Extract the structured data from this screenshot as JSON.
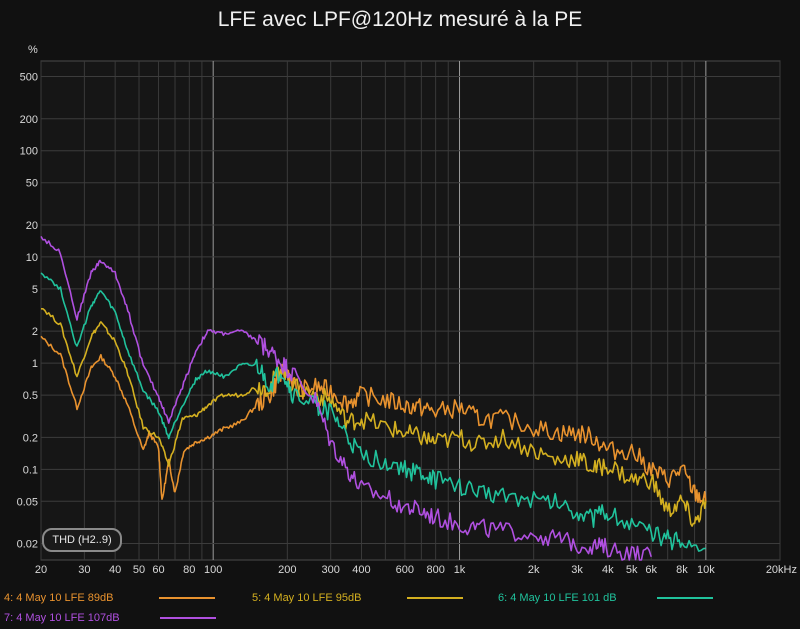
{
  "chart_data": {
    "type": "line",
    "title": "LFE avec LPF@120Hz mesuré à la PE",
    "yunit": "%",
    "xunit": "",
    "x_scale": "log",
    "y_scale": "log",
    "xlim": [
      20,
      20000
    ],
    "ylim": [
      0.014,
      700
    ],
    "grid": true,
    "x_ticks": [
      {
        "v": 20,
        "label": "20"
      },
      {
        "v": 30,
        "label": "30"
      },
      {
        "v": 40,
        "label": "40"
      },
      {
        "v": 50,
        "label": "50"
      },
      {
        "v": 60,
        "label": "60"
      },
      {
        "v": 80,
        "label": "80"
      },
      {
        "v": 100,
        "label": "100"
      },
      {
        "v": 200,
        "label": "200"
      },
      {
        "v": 300,
        "label": "300"
      },
      {
        "v": 400,
        "label": "400"
      },
      {
        "v": 600,
        "label": "600"
      },
      {
        "v": 800,
        "label": "800"
      },
      {
        "v": 1000,
        "label": "1k"
      },
      {
        "v": 2000,
        "label": "2k"
      },
      {
        "v": 3000,
        "label": "3k"
      },
      {
        "v": 4000,
        "label": "4k"
      },
      {
        "v": 5000,
        "label": "5k"
      },
      {
        "v": 6000,
        "label": "6k"
      },
      {
        "v": 8000,
        "label": "8k"
      },
      {
        "v": 10000,
        "label": "10k"
      },
      {
        "v": 20000,
        "label": "20kHz"
      }
    ],
    "y_ticks": [
      {
        "v": 500,
        "label": "500"
      },
      {
        "v": 200,
        "label": "200"
      },
      {
        "v": 100,
        "label": "100"
      },
      {
        "v": 50,
        "label": "50"
      },
      {
        "v": 20,
        "label": "20"
      },
      {
        "v": 10,
        "label": "10"
      },
      {
        "v": 5,
        "label": "5"
      },
      {
        "v": 2,
        "label": "2"
      },
      {
        "v": 1,
        "label": "1"
      },
      {
        "v": 0.5,
        "label": "0.5"
      },
      {
        "v": 0.2,
        "label": "0.2"
      },
      {
        "v": 0.1,
        "label": "0.1"
      },
      {
        "v": 0.05,
        "label": "0.05"
      },
      {
        "v": 0.02,
        "label": "0.02"
      }
    ],
    "annotation": "THD (H2..9)",
    "series": [
      {
        "name": "4: 4 May 10 LFE 89dB",
        "color": "#e8922e",
        "points": [
          [
            20,
            1.75
          ],
          [
            24,
            1.2
          ],
          [
            28,
            0.38
          ],
          [
            32,
            0.9
          ],
          [
            35,
            1.15
          ],
          [
            40,
            0.75
          ],
          [
            45,
            0.4
          ],
          [
            52,
            0.15
          ],
          [
            55,
            0.22
          ],
          [
            60,
            0.16
          ],
          [
            62,
            0.05
          ],
          [
            66,
            0.12
          ],
          [
            70,
            0.06
          ],
          [
            76,
            0.15
          ],
          [
            85,
            0.18
          ],
          [
            95,
            0.2
          ],
          [
            110,
            0.24
          ],
          [
            130,
            0.28
          ],
          [
            150,
            0.4
          ],
          [
            170,
            0.5
          ],
          [
            185,
            0.75
          ],
          [
            200,
            0.85
          ],
          [
            220,
            0.55
          ],
          [
            260,
            0.6
          ],
          [
            300,
            0.55
          ],
          [
            350,
            0.42
          ],
          [
            400,
            0.5
          ],
          [
            500,
            0.45
          ],
          [
            600,
            0.4
          ],
          [
            700,
            0.38
          ],
          [
            800,
            0.35
          ],
          [
            1000,
            0.38
          ],
          [
            1200,
            0.3
          ],
          [
            1500,
            0.3
          ],
          [
            2000,
            0.25
          ],
          [
            2500,
            0.22
          ],
          [
            3000,
            0.22
          ],
          [
            3500,
            0.2
          ],
          [
            4000,
            0.15
          ],
          [
            5000,
            0.15
          ],
          [
            6000,
            0.1
          ],
          [
            7000,
            0.08
          ],
          [
            8000,
            0.1
          ],
          [
            9000,
            0.06
          ],
          [
            10000,
            0.05
          ]
        ]
      },
      {
        "name": "5: 4 May 10 LFE 95dB",
        "color": "#d4b020",
        "points": [
          [
            20,
            3.4
          ],
          [
            24,
            2.3
          ],
          [
            28,
            0.75
          ],
          [
            32,
            1.8
          ],
          [
            35,
            2.4
          ],
          [
            40,
            1.6
          ],
          [
            45,
            0.8
          ],
          [
            52,
            0.25
          ],
          [
            60,
            0.2
          ],
          [
            66,
            0.11
          ],
          [
            75,
            0.3
          ],
          [
            85,
            0.32
          ],
          [
            95,
            0.4
          ],
          [
            110,
            0.5
          ],
          [
            130,
            0.5
          ],
          [
            150,
            0.6
          ],
          [
            170,
            0.6
          ],
          [
            190,
            0.95
          ],
          [
            210,
            0.6
          ],
          [
            260,
            0.5
          ],
          [
            300,
            0.45
          ],
          [
            350,
            0.28
          ],
          [
            400,
            0.3
          ],
          [
            500,
            0.25
          ],
          [
            600,
            0.22
          ],
          [
            700,
            0.2
          ],
          [
            800,
            0.18
          ],
          [
            1000,
            0.2
          ],
          [
            1200,
            0.17
          ],
          [
            1500,
            0.2
          ],
          [
            2000,
            0.15
          ],
          [
            2500,
            0.12
          ],
          [
            3000,
            0.13
          ],
          [
            3500,
            0.1
          ],
          [
            4000,
            0.11
          ],
          [
            5000,
            0.08
          ],
          [
            6000,
            0.08
          ],
          [
            7000,
            0.04
          ],
          [
            8000,
            0.05
          ],
          [
            9000,
            0.03
          ],
          [
            10000,
            0.05
          ]
        ]
      },
      {
        "name": "6: 4 May 10 LFE 101 dB",
        "color": "#20c29c",
        "points": [
          [
            20,
            7.2
          ],
          [
            24,
            5.0
          ],
          [
            28,
            1.4
          ],
          [
            32,
            3.5
          ],
          [
            35,
            4.8
          ],
          [
            40,
            3.0
          ],
          [
            45,
            1.3
          ],
          [
            52,
            0.55
          ],
          [
            60,
            0.35
          ],
          [
            66,
            0.2
          ],
          [
            75,
            0.4
          ],
          [
            85,
            0.7
          ],
          [
            95,
            0.85
          ],
          [
            110,
            0.75
          ],
          [
            130,
            0.95
          ],
          [
            150,
            0.95
          ],
          [
            170,
            0.6
          ],
          [
            190,
            0.85
          ],
          [
            210,
            0.5
          ],
          [
            260,
            0.4
          ],
          [
            300,
            0.35
          ],
          [
            350,
            0.2
          ],
          [
            400,
            0.13
          ],
          [
            500,
            0.12
          ],
          [
            600,
            0.1
          ],
          [
            700,
            0.09
          ],
          [
            800,
            0.08
          ],
          [
            1000,
            0.07
          ],
          [
            1200,
            0.06
          ],
          [
            1500,
            0.06
          ],
          [
            2000,
            0.05
          ],
          [
            2500,
            0.05
          ],
          [
            3000,
            0.04
          ],
          [
            3500,
            0.035
          ],
          [
            4000,
            0.04
          ],
          [
            5000,
            0.03
          ],
          [
            6000,
            0.025
          ],
          [
            7000,
            0.022
          ],
          [
            8000,
            0.02
          ],
          [
            10000,
            0.018
          ]
        ]
      },
      {
        "name": "7: 4 May 10 LFE 107dB",
        "color": "#b050e0",
        "points": [
          [
            20,
            15.5
          ],
          [
            24,
            11
          ],
          [
            28,
            2.6
          ],
          [
            32,
            7.2
          ],
          [
            35,
            9.2
          ],
          [
            40,
            7.0
          ],
          [
            45,
            3.2
          ],
          [
            52,
            0.95
          ],
          [
            60,
            0.48
          ],
          [
            66,
            0.28
          ],
          [
            75,
            0.6
          ],
          [
            85,
            1.3
          ],
          [
            95,
            2.0
          ],
          [
            110,
            1.9
          ],
          [
            130,
            2.0
          ],
          [
            150,
            1.65
          ],
          [
            170,
            1.3
          ],
          [
            190,
            1.0
          ],
          [
            210,
            0.8
          ],
          [
            260,
            0.45
          ],
          [
            300,
            0.18
          ],
          [
            350,
            0.1
          ],
          [
            400,
            0.065
          ],
          [
            500,
            0.055
          ],
          [
            600,
            0.045
          ],
          [
            700,
            0.04
          ],
          [
            800,
            0.035
          ],
          [
            1000,
            0.03
          ],
          [
            1200,
            0.028
          ],
          [
            1500,
            0.026
          ],
          [
            2000,
            0.025
          ],
          [
            2500,
            0.022
          ],
          [
            3000,
            0.02
          ],
          [
            3500,
            0.019
          ],
          [
            4000,
            0.018
          ],
          [
            5000,
            0.016
          ],
          [
            6000,
            0.015
          ]
        ]
      }
    ]
  }
}
